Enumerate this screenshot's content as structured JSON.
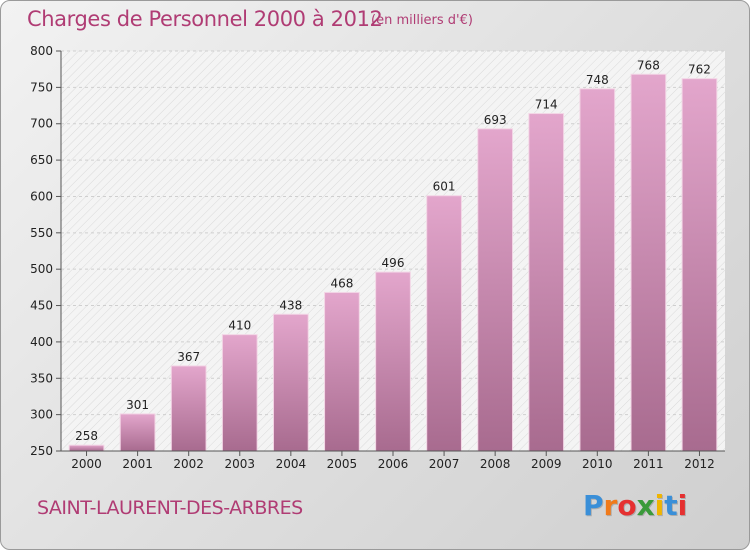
{
  "title": "Charges de Personnel 2000 à 2012",
  "subtitle": "(en milliers d'€)",
  "location": "SAINT-LAURENT-DES-ARBRES",
  "logo": {
    "text": "Proxiti",
    "letters": [
      "P",
      "r",
      "o",
      "x",
      "i",
      "t",
      "i"
    ],
    "colors": [
      "#3a8fd8",
      "#f07a1a",
      "#e53030",
      "#3a9a3a",
      "#f0b400",
      "#3a8fd8",
      "#e53030"
    ]
  },
  "colors": {
    "bar_top": "#e3a6cc",
    "bar_bottom": "#a86b8f",
    "title": "#b03c74"
  },
  "chart_data": {
    "type": "bar",
    "categories": [
      "2000",
      "2001",
      "2002",
      "2003",
      "2004",
      "2005",
      "2006",
      "2007",
      "2008",
      "2009",
      "2010",
      "2011",
      "2012"
    ],
    "values": [
      258,
      301,
      367,
      410,
      438,
      468,
      496,
      601,
      693,
      714,
      748,
      768,
      762
    ],
    "ylim": [
      250,
      800
    ],
    "yticks": [
      250,
      300,
      350,
      400,
      450,
      500,
      550,
      600,
      650,
      700,
      750,
      800
    ],
    "grid": true,
    "xlabel": "",
    "ylabel": ""
  }
}
